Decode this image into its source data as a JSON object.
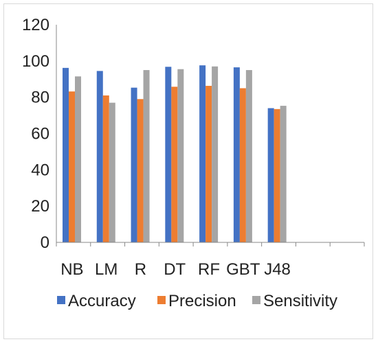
{
  "chart_data": {
    "type": "bar",
    "categories": [
      "NB",
      "LM",
      "R",
      "DT",
      "RF",
      "GBT",
      "J48",
      "",
      ""
    ],
    "series": [
      {
        "name": "Accuracy",
        "color": "#4472C4",
        "values": [
          96.2,
          94.5,
          85.3,
          96.8,
          97.6,
          96.5,
          74.0,
          null,
          null
        ]
      },
      {
        "name": "Precision",
        "color": "#ED7D31",
        "values": [
          83.2,
          81.0,
          79.0,
          85.8,
          86.3,
          85.0,
          73.5,
          null,
          null
        ]
      },
      {
        "name": "Sensitivity",
        "color": "#A5A5A5",
        "values": [
          91.5,
          77.0,
          95.0,
          95.5,
          97.0,
          95.0,
          75.3,
          null,
          null
        ]
      }
    ],
    "y_ticks": [
      0,
      20,
      40,
      60,
      80,
      100,
      120
    ],
    "ylim": [
      0,
      120
    ],
    "grid": false,
    "legend_position": "bottom",
    "title": "",
    "xlabel": "",
    "ylabel": ""
  }
}
